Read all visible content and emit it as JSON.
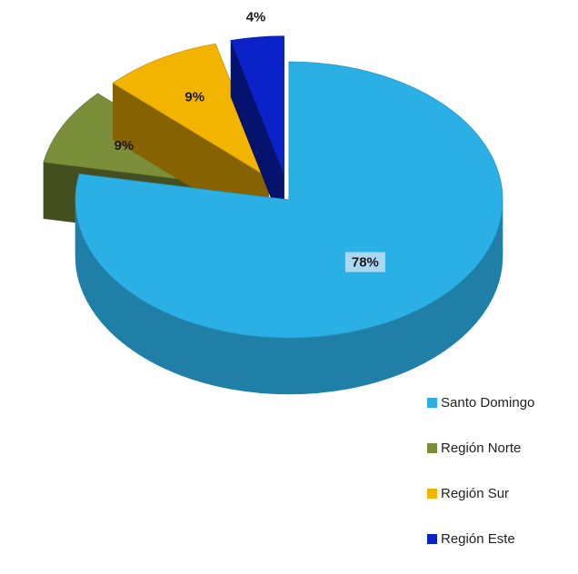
{
  "chart_data": {
    "type": "pie",
    "style": "3d-exploded",
    "categories": [
      "Santo Domingo",
      "Región Norte",
      "Región Sur",
      "Región Este"
    ],
    "values": [
      78,
      9,
      9,
      4
    ],
    "data_labels": [
      "78%",
      "9%",
      "9%",
      "4%"
    ],
    "legend": "bottom-right",
    "colors": {
      "Santo Domingo": "#2bb0e6",
      "Región Norte": "#7b8f3a",
      "Región Sur": "#f3b400",
      "Región Este": "#0a22c8"
    }
  }
}
